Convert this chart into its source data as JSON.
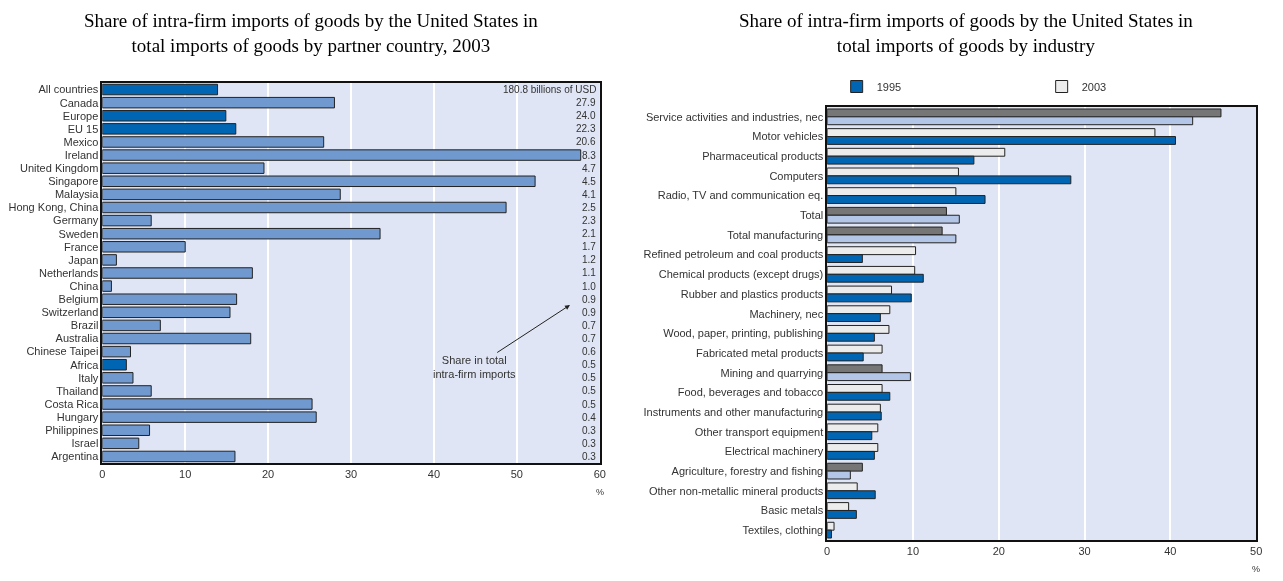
{
  "chart_data": [
    {
      "type": "bar",
      "orientation": "horizontal",
      "title": "Share of intra-firm imports of goods by the United States in total imports of goods by partner country, 2003",
      "xlabel": "%",
      "categories": [
        "All countries",
        "Canada",
        "Europe",
        "EU 15",
        "Mexico",
        "Ireland",
        "United Kingdom",
        "Singapore",
        "Malaysia",
        "Hong Kong, China",
        "Germany",
        "Sweden",
        "France",
        "Japan",
        "Netherlands",
        "China",
        "Belgium",
        "Switzerland",
        "Brazil",
        "Australia",
        "Chinese Taipei",
        "Africa",
        "Italy",
        "Thailand",
        "Costa Rica",
        "Hungary",
        "Philippines",
        "Israel",
        "Argentina"
      ],
      "values": [
        13.9,
        28.0,
        14.9,
        16.1,
        26.7,
        57.7,
        19.5,
        52.2,
        28.7,
        48.7,
        5.9,
        33.5,
        10.0,
        1.7,
        18.1,
        1.1,
        16.2,
        15.4,
        7.0,
        17.9,
        3.4,
        2.9,
        3.7,
        5.9,
        25.3,
        25.8,
        5.7,
        4.4,
        16.0
      ],
      "colors": [
        "#0066b3",
        "#7099d0",
        "#0066b3",
        "#0066b3",
        "#7099d0",
        "#7099d0",
        "#7099d0",
        "#7099d0",
        "#7099d0",
        "#7099d0",
        "#7099d0",
        "#7099d0",
        "#7099d0",
        "#7099d0",
        "#7099d0",
        "#7099d0",
        "#7099d0",
        "#7099d0",
        "#7099d0",
        "#7099d0",
        "#7099d0",
        "#0066b3",
        "#7099d0",
        "#7099d0",
        "#7099d0",
        "#7099d0",
        "#7099d0",
        "#7099d0",
        "#7099d0"
      ],
      "xlim": [
        0,
        60
      ],
      "xticks": [
        0,
        10,
        20,
        30,
        40,
        50,
        60
      ],
      "grid": "x",
      "legend": false,
      "annotations": [
        "180.8 billions of USD",
        "27.9",
        "24.0",
        "22.3",
        "20.6",
        "8.3",
        "4.7",
        "4.5",
        "4.1",
        "2.5",
        "2.3",
        "2.1",
        "1.7",
        "1.2",
        "1.1",
        "1.0",
        "0.9",
        "0.9",
        "0.7",
        "0.7",
        "0.6",
        "0.5",
        "0.5",
        "0.5",
        "0.5",
        "0.4",
        "0.3",
        "0.3",
        "0.3",
        "Share in total intra-firm imports"
      ]
    },
    {
      "type": "bar",
      "orientation": "horizontal",
      "title": "Share of intra-firm imports of goods by the United States in total imports of goods by industry",
      "xlabel": "%",
      "categories": [
        "Service activities and industries, nec",
        "Motor vehicles",
        "Pharmaceutical products",
        "Computers",
        "Radio, TV and communication eq.",
        "Total",
        "Total manufacturing",
        "Refined petroleum and coal products",
        "Chemical products (except drugs)",
        "Rubber and plastics products",
        "Machinery, nec",
        "Wood, paper, printing, publishing",
        "Fabricated metal products",
        "Mining and quarrying",
        "Food, beverages and tobacco",
        "Instruments and other manufacturing",
        "Other transport equipment",
        "Electrical machinery",
        "Agriculture, forestry and fishing",
        "Other non-metallic mineral products",
        "Basic metals",
        "Textiles, clothing"
      ],
      "series": [
        {
          "name": "2003",
          "color": "#ececec",
          "colors": [
            "#767676",
            "#ececec",
            "#ececec",
            "#ececec",
            "#ececec",
            "#767676",
            "#767676",
            "#ececec",
            "#ececec",
            "#ececec",
            "#ececec",
            "#ececec",
            "#ececec",
            "#767676",
            "#ececec",
            "#ececec",
            "#ececec",
            "#ececec",
            "#767676",
            "#ececec",
            "#ececec",
            "#ececec"
          ],
          "values": [
            45.9,
            38.2,
            20.7,
            15.3,
            15.0,
            13.9,
            13.4,
            10.3,
            10.2,
            7.5,
            7.3,
            7.2,
            6.4,
            6.4,
            6.4,
            6.2,
            5.9,
            5.9,
            4.1,
            3.5,
            2.5,
            0.8
          ]
        },
        {
          "name": "1995",
          "color": "#0066b3",
          "colors": [
            "#b4c6e7",
            "#0066b3",
            "#0066b3",
            "#0066b3",
            "#0066b3",
            "#b4c6e7",
            "#b4c6e7",
            "#0066b3",
            "#0066b3",
            "#0066b3",
            "#0066b3",
            "#0066b3",
            "#0066b3",
            "#b4c6e7",
            "#0066b3",
            "#0066b3",
            "#0066b3",
            "#0066b3",
            "#b4c6e7",
            "#0066b3",
            "#0066b3",
            "#0066b3"
          ],
          "values": [
            42.6,
            40.6,
            17.1,
            28.4,
            18.4,
            15.4,
            15.0,
            4.1,
            11.2,
            9.8,
            6.2,
            5.5,
            4.2,
            9.7,
            7.3,
            6.3,
            5.2,
            5.5,
            2.7,
            5.6,
            3.4,
            0.5
          ]
        }
      ],
      "xlim": [
        0,
        50
      ],
      "xticks": [
        0,
        10,
        20,
        30,
        40,
        50
      ],
      "grid": "x",
      "legend": "top"
    }
  ]
}
